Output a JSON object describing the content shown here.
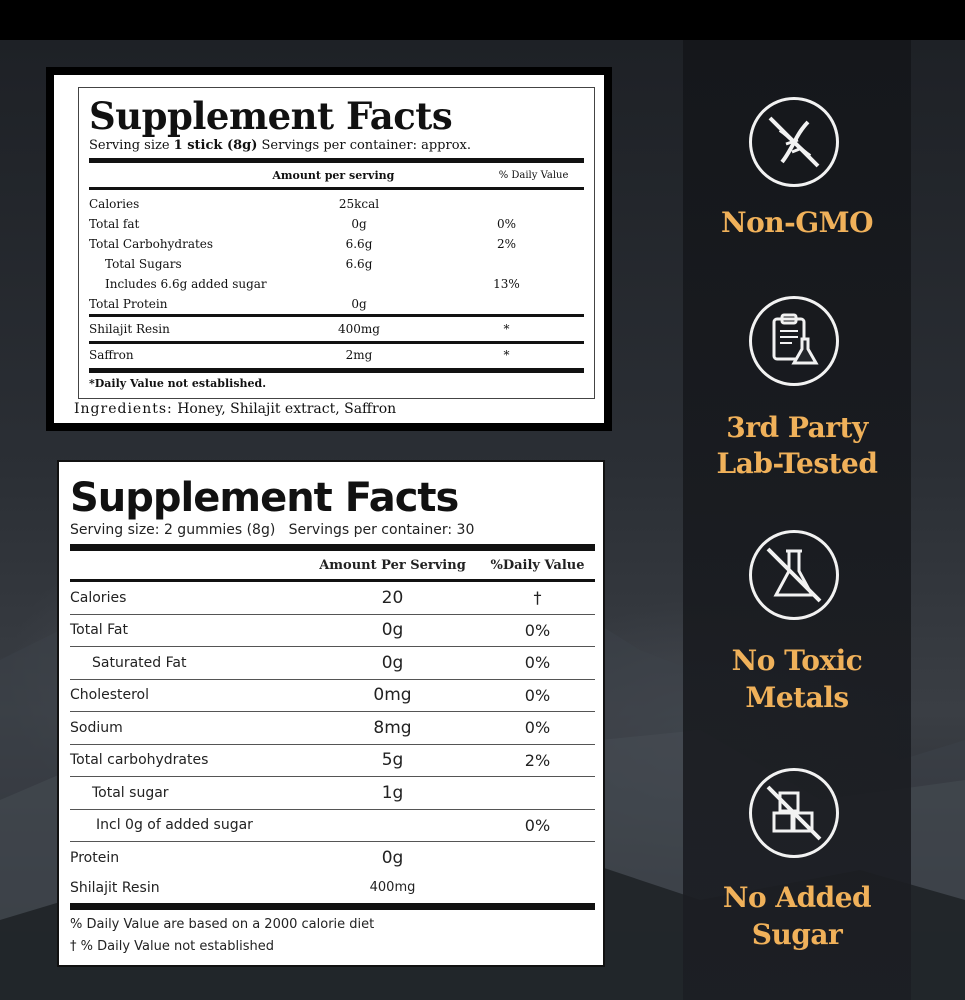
{
  "label1": {
    "title": "Supplement Facts",
    "serving_prefix": "Serving size ",
    "serving_size": "1 stick (8g)",
    "serving_suffix": " Servings per container: approx.",
    "header_amount": "Amount per serving",
    "header_dv": "% Daily Value",
    "rows": [
      {
        "name": "Calories",
        "amount": "25kcal",
        "dv": ""
      },
      {
        "name": "Total fat",
        "amount": "0g",
        "dv": "0%"
      },
      {
        "name": "Total Carbohydrates",
        "amount": "6.6g",
        "dv": "2%"
      },
      {
        "name": "Total Sugars",
        "amount": "6.6g",
        "dv": ""
      },
      {
        "name": "Includes 6.6g added sugar",
        "amount": "",
        "dv": "13%"
      },
      {
        "name": "Total Protein",
        "amount": "0g",
        "dv": ""
      },
      {
        "name": "Shilajit Resin",
        "amount": "400mg",
        "dv": "*"
      },
      {
        "name": "Saffron",
        "amount": "2mg",
        "dv": "*"
      }
    ],
    "note": "*Daily Value not established.",
    "ingredients_label": "Ingredients:",
    "ingredients": " Honey, Shilajit extract, Saffron"
  },
  "label2": {
    "title": "Supplement Facts",
    "serving": "Serving size: 2 gummies (8g)   Servings per container: 30",
    "header_amount": "Amount Per Serving",
    "header_dv": "%Daily Value",
    "rows": [
      {
        "name": "Calories",
        "amount": "20",
        "dv": "†"
      },
      {
        "name": "Total Fat",
        "amount": "0g",
        "dv": "0%"
      },
      {
        "name": "Saturated Fat",
        "amount": "0g",
        "dv": "0%"
      },
      {
        "name": "Cholesterol",
        "amount": "0mg",
        "dv": "0%"
      },
      {
        "name": "Sodium",
        "amount": "8mg",
        "dv": "0%"
      },
      {
        "name": "Total carbohydrates",
        "amount": "5g",
        "dv": "2%"
      },
      {
        "name": "Total sugar",
        "amount": "1g",
        "dv": ""
      },
      {
        "name": "Incl 0g of added sugar",
        "amount": "",
        "dv": "0%"
      },
      {
        "name": "Protein",
        "amount": "0g",
        "dv": ""
      },
      {
        "name": "Shilajit Resin",
        "amount": "400mg",
        "dv": ""
      }
    ],
    "footnote1": "% Daily Value are based on a 2000 calorie diet",
    "footnote2": "† % Daily Value not established"
  },
  "badges": [
    {
      "icon": "no-dna-icon",
      "line1": "Non-GMO",
      "line2": ""
    },
    {
      "icon": "lab-report-icon",
      "line1": "3rd Party",
      "line2": "Lab-Tested"
    },
    {
      "icon": "no-flask-icon",
      "line1": "No Toxic",
      "line2": "Metals"
    },
    {
      "icon": "no-sugar-cube-icon",
      "line1": "No Added",
      "line2": "Sugar"
    }
  ],
  "colors": {
    "accent": "#f0b15a",
    "background": "#23262b"
  }
}
